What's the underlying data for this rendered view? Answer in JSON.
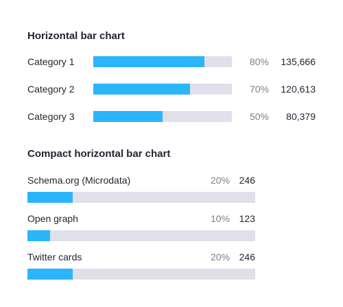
{
  "chart_data": [
    {
      "type": "bar",
      "orientation": "horizontal",
      "title": "Horizontal bar chart",
      "categories": [
        "Category 1",
        "Category 2",
        "Category 3"
      ],
      "percent_labels": [
        "80%",
        "70%",
        "50%"
      ],
      "percents": [
        80,
        70,
        50
      ],
      "value_labels": [
        "135,666",
        "120,613",
        "80,379"
      ],
      "values": [
        135666,
        120613,
        80379
      ],
      "xlim": [
        0,
        100
      ],
      "grid": false,
      "colors": {
        "bar": "#2bb5fb",
        "track": "#e0e0ea"
      }
    },
    {
      "type": "bar",
      "orientation": "horizontal",
      "title": "Compact horizontal bar chart",
      "categories": [
        "Schema.org (Microdata)",
        "Open graph",
        "Twitter cards"
      ],
      "percent_labels": [
        "20%",
        "10%",
        "20%"
      ],
      "percents": [
        20,
        10,
        20
      ],
      "value_labels": [
        "246",
        "123",
        "246"
      ],
      "values": [
        246,
        123,
        246
      ],
      "xlim": [
        0,
        100
      ],
      "grid": false,
      "colors": {
        "bar": "#2bb5fb",
        "track": "#e0e0ea"
      }
    }
  ]
}
